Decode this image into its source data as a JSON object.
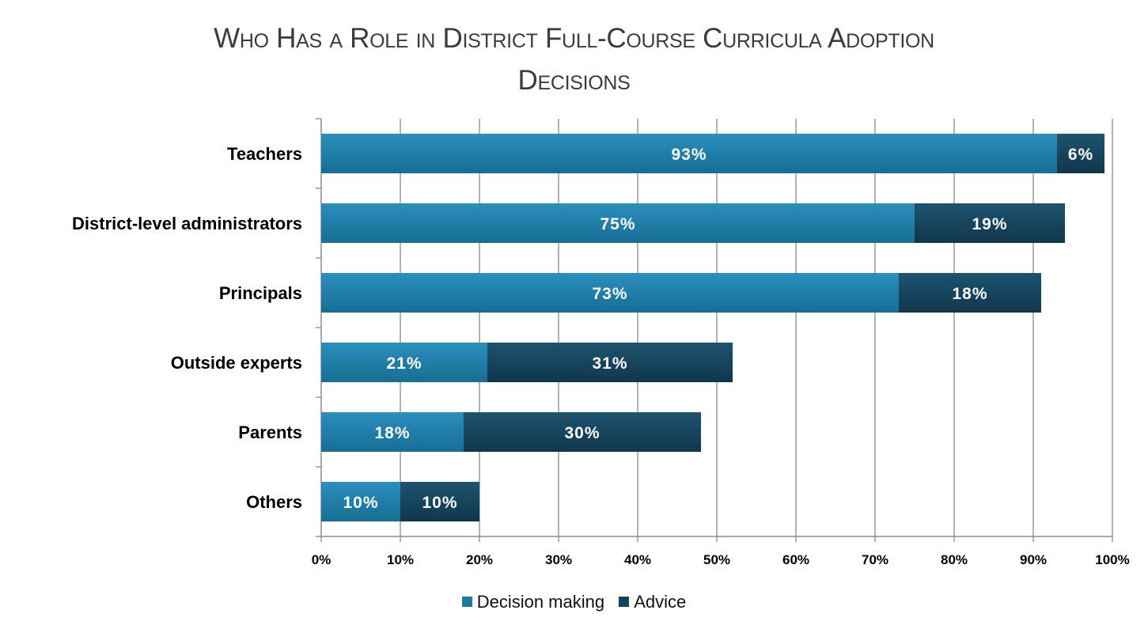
{
  "chart_data": {
    "type": "bar",
    "orientation": "horizontal",
    "stacked": true,
    "title_lines": [
      "Who Has a Role in District Full-Course Curricula Adoption",
      "Decisions"
    ],
    "categories": [
      "Teachers",
      "District-level administrators",
      "Principals",
      "Outside experts",
      "Parents",
      "Others"
    ],
    "series": [
      {
        "name": "Decision making",
        "color": "#1f7ba3",
        "values": [
          93,
          75,
          73,
          21,
          18,
          10
        ],
        "labels": [
          "93%",
          "75%",
          "73%",
          "21%",
          "18%",
          "10%"
        ]
      },
      {
        "name": "Advice",
        "color": "#16425a",
        "values": [
          6,
          19,
          18,
          31,
          30,
          10
        ],
        "labels": [
          "6%",
          "19%",
          "18%",
          "31%",
          "30%",
          "10%"
        ]
      }
    ],
    "xlim": [
      0,
      100
    ],
    "xticks": [
      "0%",
      "10%",
      "20%",
      "30%",
      "40%",
      "50%",
      "60%",
      "70%",
      "80%",
      "90%",
      "100%"
    ],
    "grid": true,
    "legend_position": "bottom"
  }
}
